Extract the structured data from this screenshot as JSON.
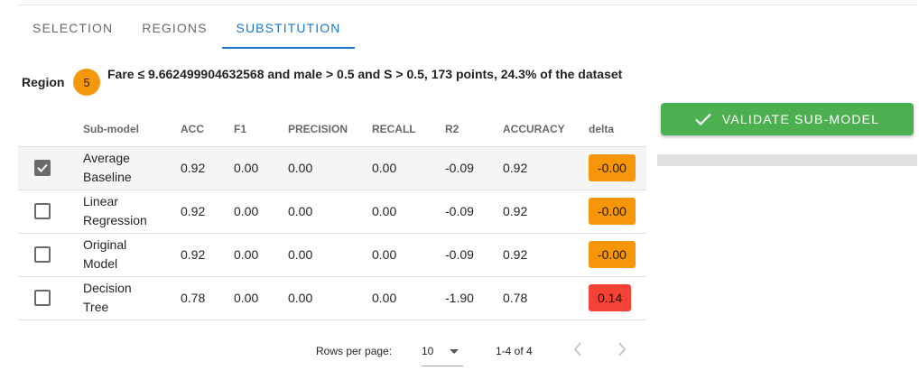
{
  "tabs": [
    {
      "label": "SELECTION"
    },
    {
      "label": "REGIONS"
    },
    {
      "label": "SUBSTITUTION"
    }
  ],
  "region": {
    "label": "Region",
    "number": "5",
    "description": "Fare ≤ 9.662499904632568 and male > 0.5 and S > 0.5, 173 points, 24.3% of the dataset"
  },
  "validate_button": {
    "label": "VALIDATE SUB-MODEL",
    "icon": "check-icon"
  },
  "progress": {
    "value": 0
  },
  "table": {
    "headers": [
      "Sub-model",
      "ACC",
      "F1",
      "PRECISION",
      "RECALL",
      "R2",
      "ACCURACY",
      "delta"
    ],
    "rows": [
      {
        "checked": true,
        "name": "Average Baseline",
        "acc": "0.92",
        "f1": "0.00",
        "precision": "0.00",
        "recall": "0.00",
        "r2": "-0.09",
        "accuracy": "0.92",
        "delta": "-0.00",
        "delta_color": "#f7960a"
      },
      {
        "checked": false,
        "name": "Linear Regression",
        "acc": "0.92",
        "f1": "0.00",
        "precision": "0.00",
        "recall": "0.00",
        "r2": "-0.09",
        "accuracy": "0.92",
        "delta": "-0.00",
        "delta_color": "#f7960a"
      },
      {
        "checked": false,
        "name": "Original Model",
        "acc": "0.92",
        "f1": "0.00",
        "precision": "0.00",
        "recall": "0.00",
        "r2": "-0.09",
        "accuracy": "0.92",
        "delta": "-0.00",
        "delta_color": "#f7960a"
      },
      {
        "checked": false,
        "name": "Decision Tree",
        "acc": "0.78",
        "f1": "0.00",
        "precision": "0.00",
        "recall": "0.00",
        "r2": "-1.90",
        "accuracy": "0.78",
        "delta": "0.14",
        "delta_color": "#f44336"
      }
    ]
  },
  "pagination": {
    "rows_per_page_label": "Rows per page:",
    "rows_per_page": "10",
    "range": "1-4 of 4"
  },
  "colors": {
    "accent": "#1976d2",
    "validate": "#4caf50",
    "region_badge": "#f5970b"
  }
}
